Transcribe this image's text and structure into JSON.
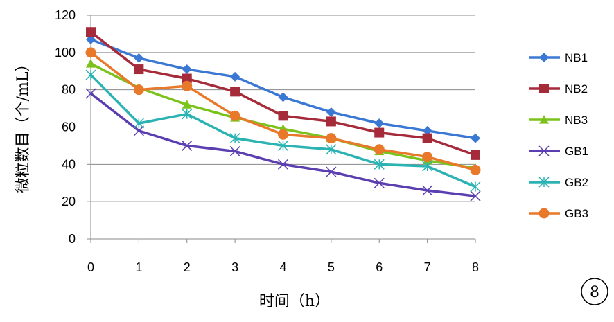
{
  "chart_data": {
    "type": "line",
    "x": [
      0,
      1,
      2,
      3,
      4,
      5,
      6,
      7,
      8
    ],
    "xlim": [
      0,
      8
    ],
    "ylim": [
      0,
      120
    ],
    "yticks": [
      0,
      20,
      40,
      60,
      80,
      100,
      120
    ],
    "xlabel": "时间（h）",
    "ylabel": "微粒数目（个/mL）",
    "grid": "horizontal",
    "legend_position": "right",
    "series": [
      {
        "name": "NB1",
        "color": "#3A78D4",
        "marker": "diamond",
        "values": [
          107,
          97,
          91,
          87,
          76,
          68,
          62,
          58,
          54
        ]
      },
      {
        "name": "NB2",
        "color": "#A52A3A",
        "marker": "square",
        "values": [
          111,
          91,
          86,
          79,
          66,
          63,
          57,
          54,
          45
        ]
      },
      {
        "name": "NB3",
        "color": "#7CC21C",
        "marker": "triangle",
        "values": [
          94,
          81,
          72,
          65,
          59,
          54,
          47,
          42,
          38
        ]
      },
      {
        "name": "GB1",
        "color": "#5B3FB0",
        "marker": "x",
        "values": [
          78,
          58,
          50,
          47,
          40,
          36,
          30,
          26,
          23
        ]
      },
      {
        "name": "GB2",
        "color": "#2BB3B3",
        "marker": "star",
        "values": [
          88,
          62,
          67,
          54,
          50,
          48,
          40,
          39,
          28
        ]
      },
      {
        "name": "GB3",
        "color": "#E8782A",
        "marker": "circle",
        "values": [
          100,
          80,
          82,
          66,
          56,
          54,
          48,
          44,
          37
        ]
      }
    ]
  },
  "badge": {
    "label": "8"
  }
}
